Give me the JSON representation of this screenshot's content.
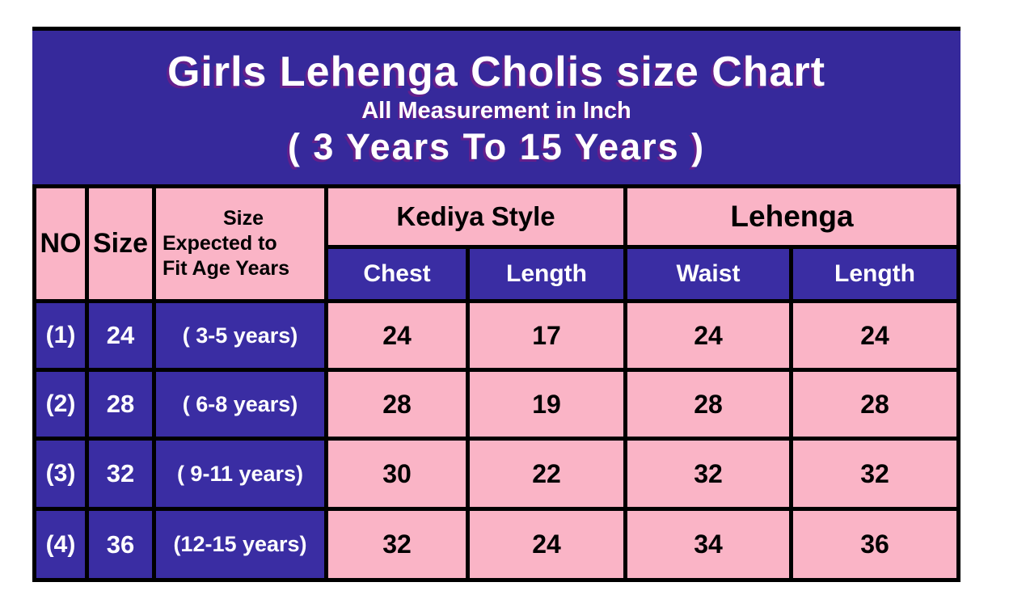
{
  "colors": {
    "banner_bg": "#36299b",
    "cell_indigo": "#3a2da3",
    "cell_pink": "#fab4c6",
    "border": "#000000",
    "text_light": "#ffffff",
    "text_dark": "#000000",
    "page_bg": "#ffffff"
  },
  "banner": {
    "title": "Girls Lehenga Cholis size Chart",
    "subtitle": "All Measurement in Inch",
    "age_range": "( 3 Years To 15 Years )"
  },
  "table": {
    "headers": {
      "no": "NO",
      "size": "Size",
      "age_line1": "Size",
      "age_line2": "Expected to",
      "age_line3": "Fit Age Years",
      "group_kediya": "Kediya Style",
      "group_lehenga": "Lehenga",
      "kediya_chest": "Chest",
      "kediya_length": "Length",
      "lehenga_waist": "Waist",
      "lehenga_length": "Length"
    },
    "rows": [
      {
        "no": "(1)",
        "size": "24",
        "age": "( 3-5 years)",
        "chest": "24",
        "kediya_length": "17",
        "waist": "24",
        "lehenga_length": "24"
      },
      {
        "no": "(2)",
        "size": "28",
        "age": "( 6-8 years)",
        "chest": "28",
        "kediya_length": "19",
        "waist": "28",
        "lehenga_length": "28"
      },
      {
        "no": "(3)",
        "size": "32",
        "age": "( 9-11 years)",
        "chest": "30",
        "kediya_length": "22",
        "waist": "32",
        "lehenga_length": "32"
      },
      {
        "no": "(4)",
        "size": "36",
        "age": "(12-15 years)",
        "chest": "32",
        "kediya_length": "24",
        "waist": "34",
        "lehenga_length": "36"
      }
    ]
  },
  "chart_data": {
    "type": "table",
    "title": "Girls Lehenga Cholis size Chart",
    "subtitle": "All Measurement in Inch",
    "age_range": "( 3 Years To 15 Years )",
    "unit": "inch",
    "column_groups": [
      "",
      "",
      "",
      "Kediya Style",
      "Kediya Style",
      "Lehenga",
      "Lehenga"
    ],
    "columns": [
      "NO",
      "Size",
      "Size Expected to Fit Age Years",
      "Chest",
      "Length",
      "Waist",
      "Length"
    ],
    "rows": [
      [
        "(1)",
        24,
        "( 3-5 years)",
        24,
        17,
        24,
        24
      ],
      [
        "(2)",
        28,
        "( 6-8 years)",
        28,
        19,
        28,
        28
      ],
      [
        "(3)",
        32,
        "( 9-11 years)",
        30,
        22,
        32,
        32
      ],
      [
        "(4)",
        36,
        "(12-15 years)",
        32,
        24,
        34,
        36
      ]
    ]
  }
}
